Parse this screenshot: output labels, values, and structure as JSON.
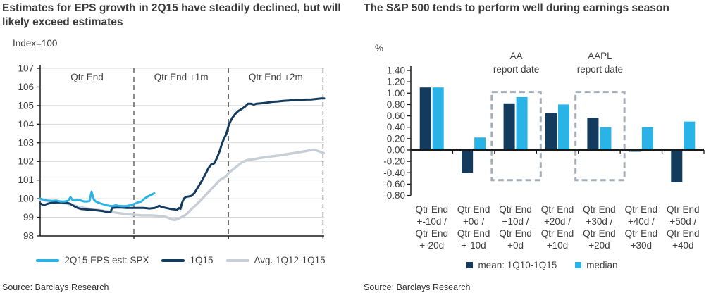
{
  "left_panel": {
    "title": "Estimates for EPS growth in 2Q15 have steadily declined, but will likely exceed estimates",
    "axis_note": "Index=100",
    "source": "Source: Barclays Research",
    "legend": [
      {
        "label": "2Q15 EPS est: SPX",
        "color": "#2ab3e6"
      },
      {
        "label": "1Q15",
        "color": "#123b5e"
      },
      {
        "label": "Avg. 1Q12-1Q15",
        "color": "#c7ced5"
      }
    ]
  },
  "right_panel": {
    "title": "The S&P 500 tends to perform well during earnings season",
    "axis_note": "%",
    "source": "Source: Barclays Research",
    "legend": [
      {
        "label": "mean: 1Q10-1Q15",
        "color": "#123b5e"
      },
      {
        "label": "median",
        "color": "#2ab3e6"
      }
    ]
  },
  "chart_data": [
    {
      "type": "line",
      "title": "Estimates for EPS growth in 2Q15 have steadily declined, but will likely exceed estimates",
      "ylabel": "Index=100",
      "ylim": [
        98,
        107
      ],
      "y_ticks": [
        98,
        99,
        100,
        101,
        102,
        103,
        104,
        105,
        106,
        107
      ],
      "grid": true,
      "legend_position": "bottom",
      "sections": [
        {
          "label": "Qtr End",
          "from": 0,
          "to": 0.33
        },
        {
          "label": "Qtr End +1m",
          "from": 0.33,
          "to": 0.663
        },
        {
          "label": "Qtr End +2m",
          "from": 0.663,
          "to": 0.996
        }
      ],
      "series": [
        {
          "name": "2Q15 EPS est: SPX",
          "color": "#2ab3e6",
          "width": 3,
          "points": [
            [
              0.0,
              100.0
            ],
            [
              0.012,
              99.95
            ],
            [
              0.027,
              99.9
            ],
            [
              0.042,
              99.88
            ],
            [
              0.057,
              99.9
            ],
            [
              0.072,
              99.85
            ],
            [
              0.087,
              99.85
            ],
            [
              0.099,
              99.9
            ],
            [
              0.107,
              100.08
            ],
            [
              0.114,
              99.92
            ],
            [
              0.124,
              99.9
            ],
            [
              0.134,
              99.95
            ],
            [
              0.144,
              99.9
            ],
            [
              0.154,
              99.85
            ],
            [
              0.164,
              99.85
            ],
            [
              0.174,
              99.87
            ],
            [
              0.181,
              100.38
            ],
            [
              0.189,
              99.95
            ],
            [
              0.196,
              99.85
            ],
            [
              0.206,
              99.78
            ],
            [
              0.218,
              99.72
            ],
            [
              0.231,
              99.65
            ],
            [
              0.243,
              99.62
            ],
            [
              0.256,
              99.6
            ],
            [
              0.266,
              99.65
            ],
            [
              0.275,
              99.62
            ],
            [
              0.288,
              99.6
            ],
            [
              0.3,
              99.6
            ],
            [
              0.313,
              99.63
            ],
            [
              0.325,
              99.68
            ],
            [
              0.337,
              99.75
            ],
            [
              0.347,
              99.82
            ],
            [
              0.357,
              99.85
            ],
            [
              0.367,
              100.0
            ],
            [
              0.377,
              100.1
            ],
            [
              0.387,
              100.18
            ],
            [
              0.397,
              100.25
            ],
            [
              0.402,
              100.3
            ]
          ]
        },
        {
          "name": "1Q15",
          "color": "#123b5e",
          "width": 3,
          "points": [
            [
              0.0,
              99.75
            ],
            [
              0.012,
              99.65
            ],
            [
              0.025,
              99.72
            ],
            [
              0.04,
              99.78
            ],
            [
              0.057,
              99.8
            ],
            [
              0.077,
              99.8
            ],
            [
              0.094,
              99.78
            ],
            [
              0.107,
              99.72
            ],
            [
              0.119,
              99.6
            ],
            [
              0.132,
              99.5
            ],
            [
              0.144,
              99.45
            ],
            [
              0.161,
              99.42
            ],
            [
              0.181,
              99.4
            ],
            [
              0.201,
              99.37
            ],
            [
              0.221,
              99.33
            ],
            [
              0.238,
              99.28
            ],
            [
              0.248,
              99.27
            ],
            [
              0.253,
              99.5
            ],
            [
              0.268,
              99.52
            ],
            [
              0.285,
              99.52
            ],
            [
              0.305,
              99.5
            ],
            [
              0.325,
              99.5
            ],
            [
              0.345,
              99.5
            ],
            [
              0.365,
              99.5
            ],
            [
              0.385,
              99.47
            ],
            [
              0.404,
              99.5
            ],
            [
              0.419,
              99.62
            ],
            [
              0.429,
              99.55
            ],
            [
              0.444,
              99.5
            ],
            [
              0.459,
              99.45
            ],
            [
              0.474,
              99.42
            ],
            [
              0.481,
              99.38
            ],
            [
              0.489,
              99.5
            ],
            [
              0.494,
              99.45
            ],
            [
              0.499,
              99.75
            ],
            [
              0.506,
              100.0
            ],
            [
              0.514,
              100.1
            ],
            [
              0.524,
              100.12
            ],
            [
              0.533,
              100.15
            ],
            [
              0.543,
              100.3
            ],
            [
              0.553,
              100.55
            ],
            [
              0.563,
              100.8
            ],
            [
              0.573,
              101.05
            ],
            [
              0.583,
              101.35
            ],
            [
              0.593,
              101.65
            ],
            [
              0.603,
              101.85
            ],
            [
              0.613,
              101.9
            ],
            [
              0.623,
              102.2
            ],
            [
              0.633,
              102.6
            ],
            [
              0.64,
              102.95
            ],
            [
              0.648,
              103.25
            ],
            [
              0.655,
              103.45
            ],
            [
              0.663,
              103.9
            ],
            [
              0.67,
              104.15
            ],
            [
              0.677,
              104.35
            ],
            [
              0.687,
              104.55
            ],
            [
              0.697,
              104.7
            ],
            [
              0.71,
              104.82
            ],
            [
              0.722,
              104.95
            ],
            [
              0.732,
              105.1
            ],
            [
              0.742,
              105.1
            ],
            [
              0.752,
              105.05
            ],
            [
              0.762,
              105.1
            ],
            [
              0.777,
              105.12
            ],
            [
              0.797,
              105.15
            ],
            [
              0.816,
              105.2
            ],
            [
              0.836,
              105.22
            ],
            [
              0.856,
              105.25
            ],
            [
              0.876,
              105.27
            ],
            [
              0.896,
              105.3
            ],
            [
              0.916,
              105.3
            ],
            [
              0.936,
              105.32
            ],
            [
              0.955,
              105.33
            ],
            [
              0.975,
              105.36
            ],
            [
              0.99,
              105.38
            ],
            [
              1.0,
              105.38
            ]
          ]
        },
        {
          "name": "Avg. 1Q12-1Q15",
          "color": "#c7ced5",
          "width": 3.5,
          "points": [
            [
              0.0,
              99.95
            ],
            [
              0.02,
              99.9
            ],
            [
              0.04,
              99.85
            ],
            [
              0.06,
              99.8
            ],
            [
              0.079,
              99.77
            ],
            [
              0.099,
              99.72
            ],
            [
              0.117,
              99.65
            ],
            [
              0.132,
              99.58
            ],
            [
              0.149,
              99.52
            ],
            [
              0.166,
              99.47
            ],
            [
              0.184,
              99.43
            ],
            [
              0.201,
              99.4
            ],
            [
              0.218,
              99.36
            ],
            [
              0.236,
              99.32
            ],
            [
              0.253,
              99.28
            ],
            [
              0.27,
              99.24
            ],
            [
              0.288,
              99.2
            ],
            [
              0.305,
              99.17
            ],
            [
              0.323,
              99.15
            ],
            [
              0.34,
              99.12
            ],
            [
              0.357,
              99.1
            ],
            [
              0.375,
              99.1
            ],
            [
              0.392,
              99.1
            ],
            [
              0.409,
              99.08
            ],
            [
              0.427,
              99.05
            ],
            [
              0.442,
              99.02
            ],
            [
              0.454,
              98.95
            ],
            [
              0.464,
              98.88
            ],
            [
              0.474,
              98.86
            ],
            [
              0.484,
              98.9
            ],
            [
              0.494,
              98.98
            ],
            [
              0.504,
              99.05
            ],
            [
              0.514,
              99.15
            ],
            [
              0.524,
              99.3
            ],
            [
              0.533,
              99.45
            ],
            [
              0.546,
              99.62
            ],
            [
              0.558,
              99.8
            ],
            [
              0.571,
              100.0
            ],
            [
              0.583,
              100.2
            ],
            [
              0.595,
              100.4
            ],
            [
              0.608,
              100.6
            ],
            [
              0.62,
              100.8
            ],
            [
              0.633,
              101.0
            ],
            [
              0.645,
              101.1
            ],
            [
              0.655,
              101.2
            ],
            [
              0.665,
              101.4
            ],
            [
              0.677,
              101.55
            ],
            [
              0.69,
              101.7
            ],
            [
              0.702,
              101.85
            ],
            [
              0.717,
              102.0
            ],
            [
              0.73,
              102.08
            ],
            [
              0.745,
              102.1
            ],
            [
              0.762,
              102.15
            ],
            [
              0.782,
              102.2
            ],
            [
              0.801,
              102.25
            ],
            [
              0.821,
              102.28
            ],
            [
              0.841,
              102.32
            ],
            [
              0.861,
              102.37
            ],
            [
              0.881,
              102.42
            ],
            [
              0.901,
              102.47
            ],
            [
              0.921,
              102.52
            ],
            [
              0.941,
              102.57
            ],
            [
              0.958,
              102.62
            ],
            [
              0.968,
              102.63
            ],
            [
              0.98,
              102.55
            ],
            [
              0.99,
              102.5
            ],
            [
              0.998,
              102.45
            ]
          ]
        }
      ]
    },
    {
      "type": "bar",
      "title": "The S&P 500 tends to perform well during earnings season",
      "ylabel": "%",
      "ylim": [
        -0.8,
        1.4
      ],
      "y_ticks": [
        1.4,
        1.2,
        1.0,
        0.8,
        0.6,
        0.4,
        0.2,
        0.0,
        -0.2,
        -0.4,
        -0.6,
        -0.8
      ],
      "grid": false,
      "legend_position": "bottom",
      "categories": [
        [
          "Qtr End",
          "+-10d /",
          "Qtr End",
          "+-20d"
        ],
        [
          "Qtr End",
          "+0d /",
          "Qtr End",
          "+-10d"
        ],
        [
          "Qtr End",
          "+10d /",
          "Qtr End",
          "+0d"
        ],
        [
          "Qtr End",
          "+20d /",
          "Qtr End",
          "+10d"
        ],
        [
          "Qtr End",
          "+30d /",
          "Qtr End",
          "+20d"
        ],
        [
          "Qtr End",
          "+40d /",
          "Qtr End",
          "+30d"
        ],
        [
          "Qtr End",
          "+50d /",
          "Qtr End",
          "+40d"
        ]
      ],
      "series": [
        {
          "name": "mean: 1Q10-1Q15",
          "color": "#123b5e",
          "values": [
            1.1,
            -0.4,
            0.82,
            0.65,
            0.57,
            -0.03,
            -0.57
          ]
        },
        {
          "name": "median",
          "color": "#2ab3e6",
          "values": [
            1.1,
            0.22,
            0.93,
            0.8,
            0.4,
            0.4,
            0.5
          ]
        }
      ],
      "annotations": [
        {
          "label_lines": [
            "AA",
            "report date"
          ],
          "group_index": 2,
          "box_top": 1.02,
          "box_bottom": -0.53,
          "box_color": "#a3aeb8"
        },
        {
          "label_lines": [
            "AAPL",
            "report date"
          ],
          "group_index": 4,
          "box_top": 1.02,
          "box_bottom": -0.53,
          "box_color": "#a3aeb8"
        }
      ]
    }
  ]
}
